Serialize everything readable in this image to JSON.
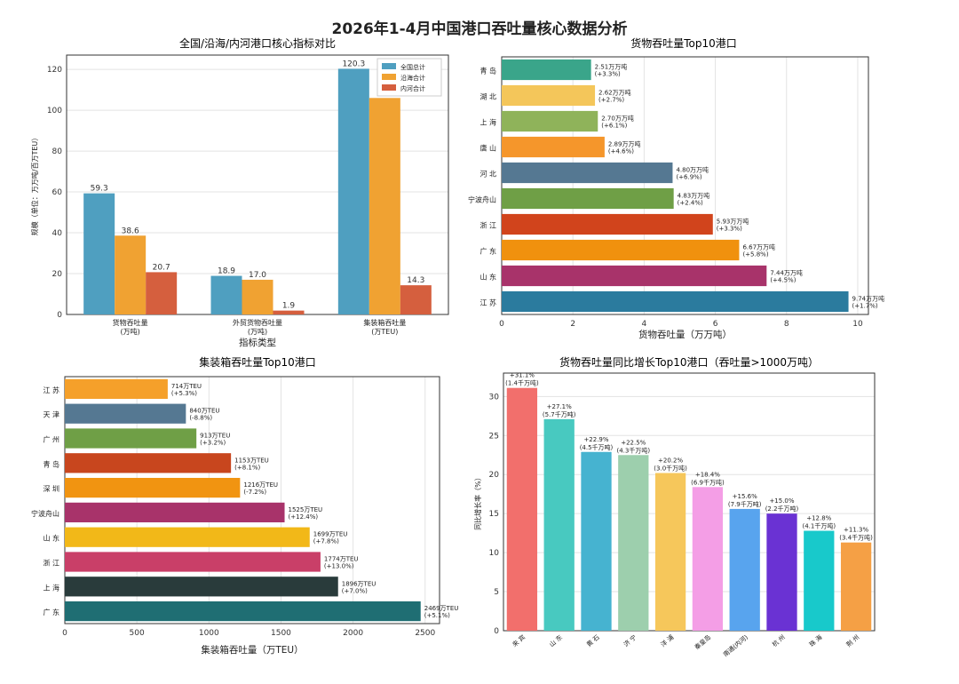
{
  "title": "2026年1-4月中国港口吞吐量核心数据分析",
  "chart_data": [
    {
      "type": "bar",
      "title": "全国/沿海/内河港口核心指标对比",
      "xlabel": "指标类型",
      "ylabel": "规模（单位：万万吨/百万TEU）",
      "categories": [
        "货物吞吐量\n(万吨)",
        "外贸货物吞吐量\n(万吨)",
        "集装箱吞吐量\n(万TEU)"
      ],
      "series": [
        {
          "name": "全国总计",
          "values": [
            59.3,
            18.9,
            120.3
          ],
          "labels": [
            "59.3",
            "18.9",
            "120.3"
          ]
        },
        {
          "name": "沿海合计",
          "values": [
            38.6,
            17.0,
            106
          ],
          "labels": [
            "38.6",
            "17.0",
            "106"
          ]
        },
        {
          "name": "内河合计",
          "values": [
            20.7,
            1.9,
            14.3
          ],
          "labels": [
            "20.7",
            "1.9",
            "14.3"
          ]
        }
      ],
      "colors": [
        "#4f9fc0",
        "#f0a232",
        "#d55f3e"
      ],
      "ylim": [
        0,
        127
      ],
      "yticks": [
        0,
        20,
        40,
        60,
        80,
        100,
        120
      ],
      "legend": "top-right",
      "grid": true
    },
    {
      "type": "bar",
      "orientation": "horizontal",
      "title": "货物吞吐量Top10港口",
      "xlabel": "货物吞吐量（万万吨）",
      "categories": [
        "青 岛",
        "湖 北",
        "上 海",
        "唐 山",
        "河 北",
        "宁波舟山",
        "浙 江",
        "广 东",
        "山 东",
        "江 苏"
      ],
      "values": [
        2.51,
        2.62,
        2.7,
        2.89,
        4.8,
        4.83,
        5.93,
        6.67,
        7.44,
        9.74
      ],
      "labels": [
        "2.51万万吨",
        "2.62万万吨",
        "2.70万万吨",
        "2.89万万吨",
        "4.80万万吨",
        "4.83万万吨",
        "5.93万万吨",
        "6.67万万吨",
        "7.44万万吨",
        "9.74万万吨"
      ],
      "growth": [
        "(+3.3%)",
        "(+2.7%)",
        "(+6.1%)",
        "(+4.6%)",
        "(+6.9%)",
        "(+2.4%)",
        "(+3.3%)",
        "(+5.8%)",
        "(+4.5%)",
        "(+1.7%)"
      ],
      "colors": [
        "#3aa58a",
        "#f4c65a",
        "#8fb35a",
        "#f5962b",
        "#557892",
        "#6f9f46",
        "#d1441c",
        "#f0910e",
        "#a8336a",
        "#2b7b9e"
      ],
      "xlim": [
        0,
        10.3
      ],
      "xticks": [
        0,
        2,
        4,
        6,
        8,
        10
      ],
      "grid": true
    },
    {
      "type": "bar",
      "orientation": "horizontal",
      "title": "集装箱吞吐量Top10港口",
      "xlabel": "集装箱吞吐量（万TEU）",
      "categories": [
        "江 苏",
        "天 津",
        "广 州",
        "青 岛",
        "深 圳",
        "宁波舟山",
        "山 东",
        "浙 江",
        "上 海",
        "广 东"
      ],
      "values": [
        714,
        840,
        913,
        1153,
        1216,
        1525,
        1699,
        1774,
        1896,
        2469
      ],
      "labels": [
        "714万TEU",
        "840万TEU",
        "913万TEU",
        "1153万TEU",
        "1216万TEU",
        "1525万TEU",
        "1699万TEU",
        "1774万TEU",
        "1896万TEU",
        "2469万TEU"
      ],
      "growth": [
        "(+5.3%)",
        "(-8.8%)",
        "(+3.2%)",
        "(+8.1%)",
        "(-7.2%)",
        "(+12.4%)",
        "(+7.8%)",
        "(+13.0%)",
        "(+7.0%)",
        "(+5.1%)"
      ],
      "colors": [
        "#f5a02a",
        "#557892",
        "#6f9f46",
        "#c8461e",
        "#f19411",
        "#a8336a",
        "#f2b818",
        "#c93f68",
        "#293b3b",
        "#1f6e73"
      ],
      "xlim": [
        0,
        2600
      ],
      "xticks": [
        0,
        500,
        1000,
        1500,
        2000,
        2500
      ],
      "grid": true
    },
    {
      "type": "bar",
      "title": "货物吞吐量同比增长Top10港口（吞吐量>1000万吨）",
      "ylabel": "同比增长率（%）",
      "categories": [
        "来 宾",
        "山 东",
        "黄 石",
        "济 宁",
        "洋 浦",
        "秦皇岛",
        "南通(内河)",
        "杭 州",
        "珠 海",
        "荆 州"
      ],
      "values": [
        31.1,
        27.1,
        22.9,
        22.5,
        20.2,
        18.4,
        15.6,
        15.0,
        12.8,
        11.3
      ],
      "labels": [
        "+31.1%",
        "+27.1%",
        "+22.9%",
        "+22.5%",
        "+20.2%",
        "+18.4%",
        "+15.6%",
        "+15.0%",
        "+12.8%",
        "+11.3%"
      ],
      "sublabels": [
        "(1.4千万吨)",
        "(5.7千万吨)",
        "(4.5千万吨)",
        "(4.3千万吨)",
        "(3.0千万吨)",
        "(6.9千万吨)",
        "(7.9千万吨)",
        "(2.2千万吨)",
        "(4.1千万吨)",
        "(3.4千万吨)"
      ],
      "colors": [
        "#f26f6c",
        "#48c9c0",
        "#46b3d0",
        "#9dcfad",
        "#f6c75b",
        "#f49ee6",
        "#58a4ee",
        "#6a32d3",
        "#18c9cb",
        "#f5a045"
      ],
      "ylim": [
        0,
        33
      ],
      "yticks": [
        0,
        5,
        10,
        15,
        20,
        25,
        30
      ],
      "grid": true
    }
  ]
}
